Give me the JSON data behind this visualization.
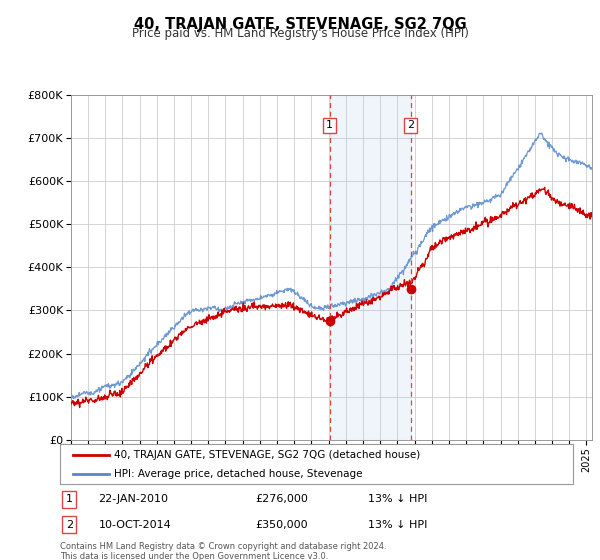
{
  "title": "40, TRAJAN GATE, STEVENAGE, SG2 7QG",
  "subtitle": "Price paid vs. HM Land Registry's House Price Index (HPI)",
  "ylabel_ticks": [
    "£0",
    "£100K",
    "£200K",
    "£300K",
    "£400K",
    "£500K",
    "£600K",
    "£700K",
    "£800K"
  ],
  "ytick_values": [
    0,
    100000,
    200000,
    300000,
    400000,
    500000,
    600000,
    700000,
    800000
  ],
  "ylim": [
    0,
    800000
  ],
  "xlim_start": 1995.0,
  "xlim_end": 2025.3,
  "sale1_x": 2010.056,
  "sale1_y": 276000,
  "sale2_x": 2014.781,
  "sale2_y": 350000,
  "legend_line1": "40, TRAJAN GATE, STEVENAGE, SG2 7QG (detached house)",
  "legend_line2": "HPI: Average price, detached house, Stevenage",
  "annot1_label": "1",
  "annot1_date": "22-JAN-2010",
  "annot1_price": "£276,000",
  "annot1_hpi": "13% ↓ HPI",
  "annot2_label": "2",
  "annot2_date": "10-OCT-2014",
  "annot2_price": "£350,000",
  "annot2_hpi": "13% ↓ HPI",
  "footer": "Contains HM Land Registry data © Crown copyright and database right 2024.\nThis data is licensed under the Open Government Licence v3.0.",
  "line_price_color": "#cc0000",
  "line_hpi_color": "#5588cc",
  "vline_color": "#dd4444",
  "grid_color": "#cccccc",
  "background_color": "#ffffff"
}
